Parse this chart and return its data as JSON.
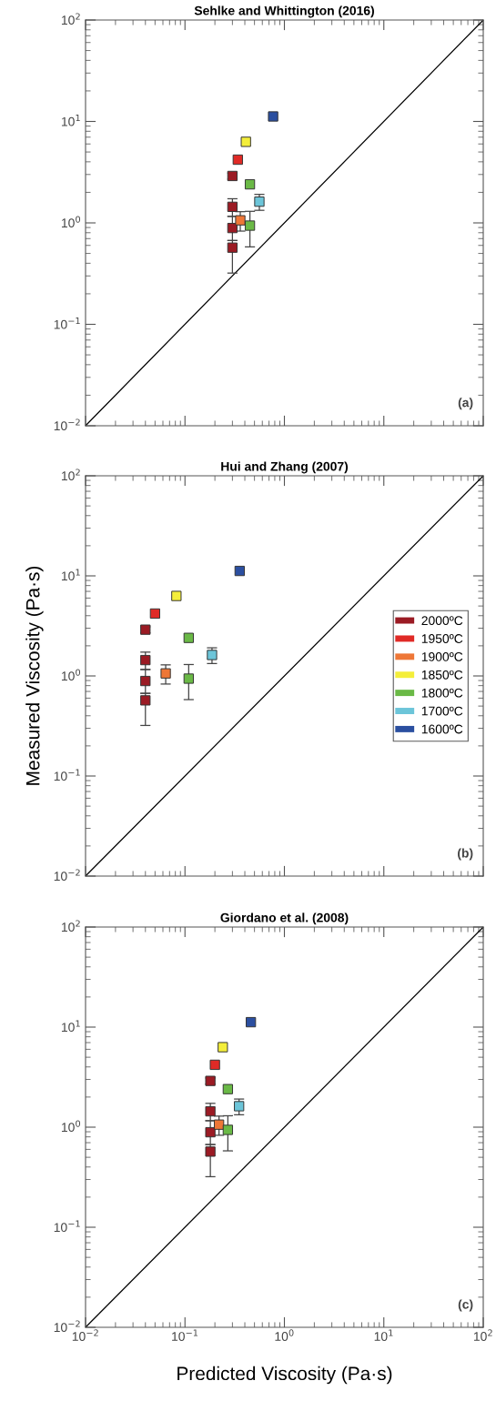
{
  "chart_data": [
    {
      "type": "scatter",
      "title": "Sehlke and Whittington (2016)",
      "log": "xy",
      "xlim": [
        0.01,
        100
      ],
      "ylim": [
        0.01,
        100
      ],
      "xticks": [
        {
          "value": 0.01,
          "label": null
        },
        {
          "value": 0.1,
          "label": null
        },
        {
          "value": 1,
          "label": null
        },
        {
          "value": 10,
          "label": null
        },
        {
          "value": 100,
          "label": null
        }
      ],
      "yticks": [
        {
          "value": 0.01,
          "label": "10$^{−2}$"
        },
        {
          "value": 0.1,
          "label": "10$^{−1}$"
        },
        {
          "value": 1,
          "label": "10$^{0}$"
        },
        {
          "value": 10,
          "label": "10$^{1}$"
        },
        {
          "value": 100,
          "label": "10$^{2}$"
        }
      ],
      "tick_labels": "y",
      "grid": false,
      "marker": "square",
      "legend": false,
      "annotations": [
        "(a)"
      ],
      "series": [
        {
          "type": "line",
          "color": "#000000",
          "marker": "none",
          "x": [
            0.01,
            100
          ],
          "values": [
            0.01,
            100
          ]
        },
        {
          "color": "#9b1b24",
          "x": [
            0.3,
            0.3,
            0.3,
            0.3
          ],
          "values": [
            2.9,
            1.44,
            0.89,
            0.57
          ],
          "errors": [
            [
              2.7,
              3.1
            ],
            [
              1.16,
              1.73
            ],
            [
              0.67,
              1.16
            ],
            [
              0.32,
              0.67
            ]
          ]
        },
        {
          "color": "#e02a26",
          "x": [
            0.34
          ],
          "values": [
            4.2
          ]
        },
        {
          "color": "#ee7737",
          "x": [
            0.36
          ],
          "values": [
            1.06
          ],
          "errors": [
            [
              0.83,
              1.29
            ]
          ]
        },
        {
          "color": "#f4ee3a",
          "x": [
            0.41
          ],
          "values": [
            6.3
          ]
        },
        {
          "color": "#6ab946",
          "x": [
            0.45,
            0.45
          ],
          "values": [
            2.4,
            0.94
          ],
          "errors": [
            null,
            [
              0.58,
              1.3
            ]
          ]
        },
        {
          "color": "#6cc5d9",
          "x": [
            0.56
          ],
          "values": [
            1.62
          ],
          "errors": [
            [
              1.33,
              1.91
            ]
          ]
        },
        {
          "color": "#2b4fa0",
          "x": [
            0.77
          ],
          "values": [
            11.2
          ]
        }
      ]
    },
    {
      "type": "scatter",
      "title": "Hui and Zhang (2007)",
      "ylabel": "Measured Viscosity (Pa·s)",
      "log": "xy",
      "xlim": [
        0.01,
        100
      ],
      "ylim": [
        0.01,
        100
      ],
      "xticks": [
        {
          "value": 0.01,
          "label": null
        },
        {
          "value": 0.1,
          "label": null
        },
        {
          "value": 1,
          "label": null
        },
        {
          "value": 10,
          "label": null
        },
        {
          "value": 100,
          "label": null
        }
      ],
      "yticks": [
        {
          "value": 0.01,
          "label": "10$^{−2}$"
        },
        {
          "value": 0.1,
          "label": "10$^{−1}$"
        },
        {
          "value": 1,
          "label": "10$^{0}$"
        },
        {
          "value": 10,
          "label": "10$^{1}$"
        },
        {
          "value": 100,
          "label": "10$^{2}$"
        }
      ],
      "tick_labels": "y",
      "grid": false,
      "marker": "square",
      "legend": "right",
      "annotations": [
        "(b)"
      ],
      "series": [
        {
          "type": "line",
          "color": "#000000",
          "marker": "none",
          "x": [
            0.01,
            100
          ],
          "values": [
            0.01,
            100
          ]
        },
        {
          "name": "2000ºC",
          "color": "#9b1b24",
          "x": [
            0.04,
            0.04,
            0.04,
            0.04
          ],
          "values": [
            2.9,
            1.44,
            0.89,
            0.57
          ],
          "errors": [
            [
              2.7,
              3.1
            ],
            [
              1.16,
              1.73
            ],
            [
              0.67,
              1.16
            ],
            [
              0.32,
              0.67
            ]
          ]
        },
        {
          "name": "1950ºC",
          "color": "#e02a26",
          "x": [
            0.05
          ],
          "values": [
            4.2
          ]
        },
        {
          "name": "1900ºC",
          "color": "#ee7737",
          "x": [
            0.064
          ],
          "values": [
            1.06
          ],
          "errors": [
            [
              0.83,
              1.29
            ]
          ]
        },
        {
          "name": "1850ºC",
          "color": "#f4ee3a",
          "x": [
            0.082
          ],
          "values": [
            6.3
          ]
        },
        {
          "name": "1800ºC",
          "color": "#6ab946",
          "x": [
            0.109,
            0.109
          ],
          "values": [
            2.4,
            0.94
          ],
          "errors": [
            null,
            [
              0.58,
              1.3
            ]
          ]
        },
        {
          "name": "1700ºC",
          "color": "#6cc5d9",
          "x": [
            0.187
          ],
          "values": [
            1.62
          ],
          "errors": [
            [
              1.33,
              1.91
            ]
          ]
        },
        {
          "name": "1600ºC",
          "color": "#2b4fa0",
          "x": [
            0.355
          ],
          "values": [
            11.2
          ]
        }
      ]
    },
    {
      "type": "scatter",
      "title": "Giordano et al. (2008)",
      "xlabel": "Predicted Viscosity (Pa·s)",
      "log": "xy",
      "xlim": [
        0.01,
        100
      ],
      "ylim": [
        0.01,
        100
      ],
      "xticks": [
        {
          "value": 0.01,
          "label": "10$^{−2}$"
        },
        {
          "value": 0.1,
          "label": "10$^{−1}$"
        },
        {
          "value": 1,
          "label": "10$^{0}$"
        },
        {
          "value": 10,
          "label": "10$^{1}$"
        },
        {
          "value": 100,
          "label": "10$^{2}$"
        }
      ],
      "yticks": [
        {
          "value": 0.01,
          "label": "10$^{−2}$"
        },
        {
          "value": 0.1,
          "label": "10$^{−1}$"
        },
        {
          "value": 1,
          "label": "10$^{0}$"
        },
        {
          "value": 10,
          "label": "10$^{1}$"
        },
        {
          "value": 100,
          "label": "10$^{2}$"
        }
      ],
      "grid": false,
      "marker": "square",
      "legend": false,
      "annotations": [
        "(c)"
      ],
      "series": [
        {
          "type": "line",
          "color": "#000000",
          "marker": "none",
          "x": [
            0.01,
            100
          ],
          "values": [
            0.01,
            100
          ]
        },
        {
          "color": "#9b1b24",
          "x": [
            0.18,
            0.18,
            0.18,
            0.18
          ],
          "values": [
            2.9,
            1.44,
            0.89,
            0.57
          ],
          "errors": [
            [
              2.7,
              3.1
            ],
            [
              1.16,
              1.73
            ],
            [
              0.67,
              1.16
            ],
            [
              0.32,
              0.67
            ]
          ]
        },
        {
          "color": "#e02a26",
          "x": [
            0.2
          ],
          "values": [
            4.2
          ]
        },
        {
          "color": "#ee7737",
          "x": [
            0.22
          ],
          "values": [
            1.06
          ],
          "errors": [
            [
              0.83,
              1.29
            ]
          ]
        },
        {
          "color": "#f4ee3a",
          "x": [
            0.24
          ],
          "values": [
            6.3
          ]
        },
        {
          "color": "#6ab946",
          "x": [
            0.27,
            0.27
          ],
          "values": [
            2.4,
            0.94
          ],
          "errors": [
            null,
            [
              0.58,
              1.3
            ]
          ]
        },
        {
          "color": "#6cc5d9",
          "x": [
            0.35
          ],
          "values": [
            1.62
          ],
          "errors": [
            [
              1.33,
              1.91
            ]
          ]
        },
        {
          "color": "#2b4fa0",
          "x": [
            0.46
          ],
          "values": [
            11.2
          ]
        }
      ]
    }
  ]
}
